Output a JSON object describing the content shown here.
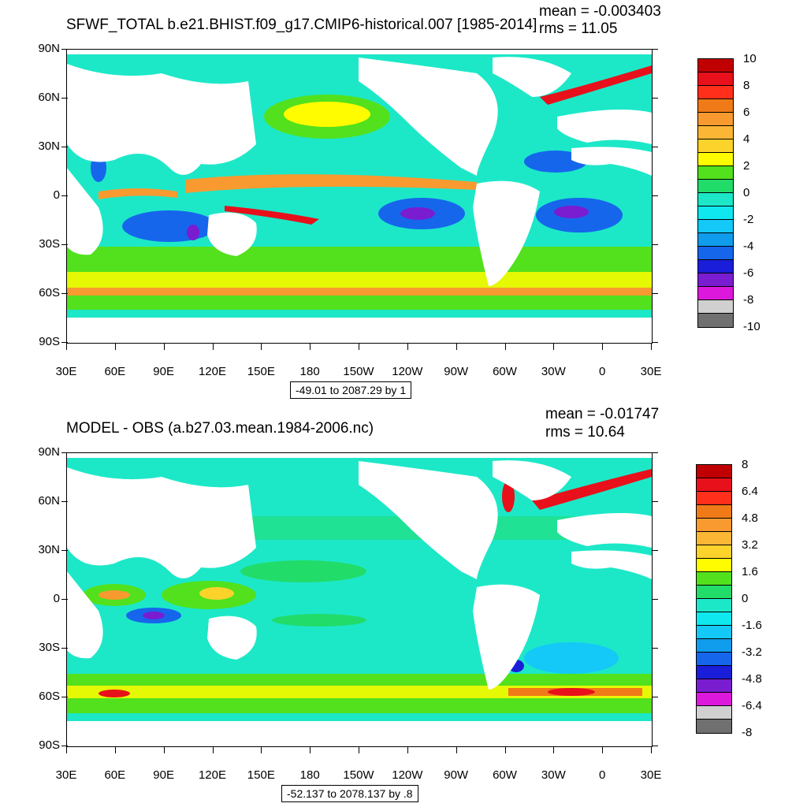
{
  "top": {
    "title": "SFWF_TOTAL b.e21.BHIST.f09_g17.CMIP6-historical.007 [1985-2014]",
    "mean_text": "mean = -0.003403",
    "rms_text": "rms = 11.05",
    "range_text": "-49.01 to 2087.29 by 1",
    "lat_labels": [
      "90N",
      "60N",
      "30N",
      "0",
      "30S",
      "60S",
      "90S"
    ],
    "lon_labels": [
      "30E",
      "60E",
      "90E",
      "120E",
      "150E",
      "180",
      "150W",
      "120W",
      "90W",
      "60W",
      "30W",
      "0",
      "30E"
    ],
    "colorbar": {
      "labels": [
        "10",
        "8",
        "6",
        "4",
        "2",
        "0",
        "-2",
        "-4",
        "-6",
        "-8",
        "-10"
      ],
      "colors": [
        "#c00000",
        "#e8101a",
        "#ff2f1c",
        "#f07a18",
        "#f89a30",
        "#fbb636",
        "#fcd32b",
        "#fffc00",
        "#52e11c",
        "#22dc6a",
        "#1ce8c8",
        "#10e8f0",
        "#14c8f8",
        "#109cec",
        "#1666ec",
        "#1a1ed8",
        "#7a1cd0",
        "#dc18dc",
        "#d0d0d0",
        "#707070"
      ]
    }
  },
  "bottom": {
    "title": "MODEL - OBS (a.b27.03.mean.1984-2006.nc)",
    "mean_text": "mean = -0.01747",
    "rms_text": "rms = 10.64",
    "range_text": "-52.137 to 2078.137 by .8",
    "lat_labels": [
      "90N",
      "60N",
      "30N",
      "0",
      "30S",
      "60S",
      "90S"
    ],
    "lon_labels": [
      "30E",
      "60E",
      "90E",
      "120E",
      "150E",
      "180",
      "150W",
      "120W",
      "90W",
      "60W",
      "30W",
      "0",
      "30E"
    ],
    "colorbar": {
      "labels": [
        "8",
        "6.4",
        "4.8",
        "3.2",
        "1.6",
        "0",
        "-1.6",
        "-3.2",
        "-4.8",
        "-6.4",
        "-8"
      ],
      "colors": [
        "#c00000",
        "#e8101a",
        "#ff2f1c",
        "#f07a18",
        "#f89a30",
        "#fbb636",
        "#fcd32b",
        "#fffc00",
        "#52e11c",
        "#22dc6a",
        "#1ce8c8",
        "#10e8f0",
        "#14c8f8",
        "#109cec",
        "#1666ec",
        "#1a1ed8",
        "#7a1cd0",
        "#dc18dc",
        "#d0d0d0",
        "#707070"
      ]
    }
  }
}
